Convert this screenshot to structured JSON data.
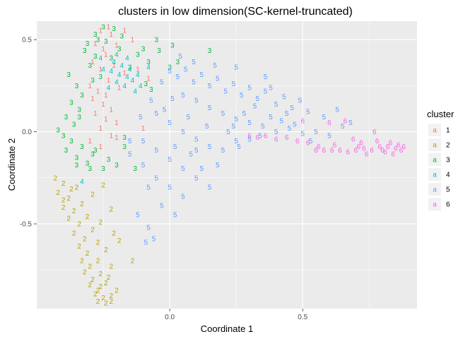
{
  "chart_data": {
    "type": "scatter",
    "title": "clusters in low dimension(SC-kernel-truncated)",
    "xlabel": "Coordinate 1",
    "ylabel": "Coordinate 2",
    "xlim": [
      -0.5,
      0.93
    ],
    "ylim": [
      -0.96,
      0.6
    ],
    "x_ticks": [
      "0.0",
      "0.5"
    ],
    "y_ticks": [
      "0.5",
      "0.0",
      "-0.5"
    ],
    "grid": true,
    "legend_title": "cluster",
    "legend_position": "right",
    "series": [
      {
        "name": "1",
        "color": "#F8766D",
        "points": [
          [
            -0.26,
            0.55
          ],
          [
            -0.22,
            0.53
          ],
          [
            -0.17,
            0.55
          ],
          [
            -0.28,
            0.48
          ],
          [
            -0.25,
            0.45
          ],
          [
            -0.2,
            0.47
          ],
          [
            -0.24,
            0.42
          ],
          [
            -0.29,
            0.38
          ],
          [
            -0.26,
            0.34
          ],
          [
            -0.21,
            0.36
          ],
          [
            -0.17,
            0.32
          ],
          [
            -0.12,
            0.34
          ],
          [
            -0.08,
            0.29
          ],
          [
            -0.3,
            0.25
          ],
          [
            -0.27,
            0.22
          ],
          [
            -0.24,
            0.2
          ],
          [
            -0.29,
            0.18
          ],
          [
            -0.25,
            0.15
          ],
          [
            -0.22,
            0.12
          ],
          [
            -0.28,
            0.1
          ],
          [
            -0.24,
            0.07
          ],
          [
            -0.2,
            0.05
          ],
          [
            -0.26,
            0.02
          ],
          [
            -0.22,
            -0.02
          ],
          [
            -0.3,
            -0.05
          ],
          [
            -0.26,
            -0.08
          ],
          [
            -0.2,
            -0.03
          ],
          [
            -0.1,
            0.02
          ],
          [
            -0.23,
            0.28
          ],
          [
            -0.19,
            0.24
          ],
          [
            -0.23,
            0.57
          ],
          [
            -0.14,
            0.5
          ]
        ]
      },
      {
        "name": "2",
        "color": "#B79F00",
        "points": [
          [
            -0.43,
            -0.25
          ],
          [
            -0.4,
            -0.28
          ],
          [
            -0.37,
            -0.31
          ],
          [
            -0.42,
            -0.33
          ],
          [
            -0.38,
            -0.36
          ],
          [
            -0.35,
            -0.3
          ],
          [
            -0.4,
            -0.41
          ],
          [
            -0.36,
            -0.43
          ],
          [
            -0.33,
            -0.39
          ],
          [
            -0.38,
            -0.47
          ],
          [
            -0.34,
            -0.5
          ],
          [
            -0.31,
            -0.46
          ],
          [
            -0.29,
            -0.34
          ],
          [
            -0.25,
            -0.29
          ],
          [
            -0.22,
            -0.42
          ],
          [
            -0.36,
            -0.55
          ],
          [
            -0.32,
            -0.58
          ],
          [
            -0.29,
            -0.53
          ],
          [
            -0.26,
            -0.49
          ],
          [
            -0.34,
            -0.62
          ],
          [
            -0.31,
            -0.66
          ],
          [
            -0.27,
            -0.6
          ],
          [
            -0.24,
            -0.64
          ],
          [
            -0.33,
            -0.7
          ],
          [
            -0.3,
            -0.73
          ],
          [
            -0.27,
            -0.7
          ],
          [
            -0.32,
            -0.76
          ],
          [
            -0.29,
            -0.8
          ],
          [
            -0.26,
            -0.77
          ],
          [
            -0.3,
            -0.83
          ],
          [
            -0.27,
            -0.86
          ],
          [
            -0.24,
            -0.82
          ],
          [
            -0.28,
            -0.88
          ],
          [
            -0.25,
            -0.9
          ],
          [
            -0.22,
            -0.89
          ],
          [
            -0.2,
            -0.86
          ],
          [
            -0.21,
            -0.55
          ],
          [
            -0.19,
            -0.59
          ],
          [
            -0.22,
            -0.73
          ],
          [
            -0.14,
            -0.7
          ],
          [
            -0.4,
            -0.37
          ],
          [
            -0.27,
            -0.92
          ],
          [
            -0.24,
            -0.93
          ],
          [
            -0.22,
            -0.92
          ],
          [
            -0.26,
            -0.84
          ],
          [
            -0.23,
            -0.79
          ]
        ]
      },
      {
        "name": "3",
        "color": "#00BA38",
        "points": [
          [
            -0.28,
            0.53
          ],
          [
            -0.25,
            0.57
          ],
          [
            -0.21,
            0.56
          ],
          [
            -0.18,
            0.52
          ],
          [
            -0.31,
            0.48
          ],
          [
            -0.27,
            0.5
          ],
          [
            -0.24,
            0.49
          ],
          [
            -0.19,
            0.45
          ],
          [
            -0.32,
            0.44
          ],
          [
            -0.28,
            0.41
          ],
          [
            -0.22,
            0.4
          ],
          [
            -0.1,
            0.45
          ],
          [
            -0.04,
            0.44
          ],
          [
            -0.05,
            0.5
          ],
          [
            0.01,
            0.47
          ],
          [
            0.03,
            0.38
          ],
          [
            -0.08,
            0.38
          ],
          [
            -0.12,
            0.42
          ],
          [
            -0.38,
            0.31
          ],
          [
            -0.35,
            0.25
          ],
          [
            -0.33,
            0.2
          ],
          [
            -0.37,
            0.16
          ],
          [
            -0.34,
            0.12
          ],
          [
            -0.39,
            0.08
          ],
          [
            -0.36,
            0.04
          ],
          [
            -0.4,
            -0.02
          ],
          [
            -0.37,
            -0.05
          ],
          [
            -0.33,
            -0.08
          ],
          [
            -0.39,
            -0.1
          ],
          [
            -0.35,
            -0.14
          ],
          [
            -0.31,
            -0.17
          ],
          [
            -0.29,
            -0.12
          ],
          [
            -0.35,
            -0.18
          ],
          [
            -0.3,
            -0.2
          ],
          [
            -0.25,
            -0.2
          ],
          [
            -0.23,
            -0.15
          ],
          [
            -0.17,
            -0.08
          ],
          [
            -0.13,
            -0.2
          ],
          [
            -0.07,
            0.23
          ],
          [
            -0.09,
            0.26
          ],
          [
            0.0,
            0.35
          ],
          [
            -0.15,
            0.35
          ],
          [
            -0.34,
            0.08
          ],
          [
            -0.42,
            0.01
          ],
          [
            -0.28,
            -0.1
          ],
          [
            -0.2,
            -0.18
          ],
          [
            -0.3,
            0.36
          ],
          [
            -0.26,
            0.3
          ],
          [
            -0.29,
            0.28
          ],
          [
            0.15,
            0.44
          ],
          [
            -0.17,
            -0.03
          ]
        ]
      },
      {
        "name": "4",
        "color": "#00BFC4",
        "points": [
          [
            -0.22,
            0.33
          ],
          [
            -0.19,
            0.31
          ],
          [
            -0.16,
            0.3
          ],
          [
            -0.2,
            0.27
          ],
          [
            -0.17,
            0.25
          ],
          [
            -0.14,
            0.28
          ],
          [
            -0.21,
            0.38
          ],
          [
            -0.18,
            0.36
          ],
          [
            -0.15,
            0.34
          ],
          [
            -0.25,
            0.34
          ],
          [
            -0.23,
            0.24
          ],
          [
            -0.13,
            0.22
          ],
          [
            -0.11,
            0.25
          ],
          [
            -0.26,
            0.4
          ],
          [
            -0.2,
            0.42
          ],
          [
            -0.16,
            0.4
          ],
          [
            -0.33,
            -0.27
          ],
          [
            -0.08,
            0.35
          ],
          [
            -0.12,
            0.31
          ]
        ]
      },
      {
        "name": "5",
        "color": "#619CFF",
        "points": [
          [
            0.0,
            0.33
          ],
          [
            0.03,
            0.3
          ],
          [
            0.06,
            0.34
          ],
          [
            0.09,
            0.27
          ],
          [
            0.12,
            0.31
          ],
          [
            0.15,
            0.25
          ],
          [
            0.18,
            0.29
          ],
          [
            0.21,
            0.22
          ],
          [
            0.24,
            0.26
          ],
          [
            0.27,
            0.2
          ],
          [
            0.3,
            0.24
          ],
          [
            0.33,
            0.18
          ],
          [
            0.36,
            0.22
          ],
          [
            0.4,
            0.15
          ],
          [
            0.43,
            0.19
          ],
          [
            0.46,
            0.13
          ],
          [
            0.49,
            0.17
          ],
          [
            0.52,
            0.11
          ],
          [
            0.05,
            0.2
          ],
          [
            0.1,
            0.17
          ],
          [
            0.15,
            0.13
          ],
          [
            0.2,
            0.1
          ],
          [
            0.25,
            0.07
          ],
          [
            0.3,
            0.05
          ],
          [
            0.35,
            0.03
          ],
          [
            0.4,
            0.0
          ],
          [
            0.45,
            0.02
          ],
          [
            0.5,
            -0.01
          ],
          [
            0.55,
            0.0
          ],
          [
            0.6,
            -0.02
          ],
          [
            0.65,
            0.03
          ],
          [
            -0.05,
            0.1
          ],
          [
            0.0,
            0.05
          ],
          [
            0.05,
            0.0
          ],
          [
            0.1,
            -0.04
          ],
          [
            0.15,
            -0.08
          ],
          [
            0.2,
            -0.1
          ],
          [
            0.25,
            -0.05
          ],
          [
            -0.1,
            -0.05
          ],
          [
            -0.05,
            -0.1
          ],
          [
            0.0,
            -0.15
          ],
          [
            0.05,
            -0.2
          ],
          [
            0.1,
            -0.25
          ],
          [
            0.15,
            -0.3
          ],
          [
            -0.15,
            -0.12
          ],
          [
            -0.1,
            -0.18
          ],
          [
            -0.05,
            -0.25
          ],
          [
            0.0,
            -0.3
          ],
          [
            0.05,
            -0.35
          ],
          [
            -0.08,
            -0.3
          ],
          [
            -0.03,
            -0.4
          ],
          [
            -0.12,
            -0.45
          ],
          [
            -0.08,
            -0.52
          ],
          [
            -0.06,
            -0.58
          ],
          [
            -0.09,
            -0.6
          ],
          [
            0.1,
            -0.1
          ],
          [
            0.14,
            0.03
          ],
          [
            0.28,
            0.1
          ],
          [
            0.32,
            0.14
          ],
          [
            0.38,
            0.08
          ],
          [
            0.42,
            0.06
          ],
          [
            0.47,
            0.04
          ],
          [
            0.22,
            0.0
          ],
          [
            0.26,
            -0.08
          ],
          [
            0.34,
            -0.02
          ],
          [
            0.18,
            -0.18
          ],
          [
            0.08,
            -0.12
          ],
          [
            0.12,
            -0.2
          ],
          [
            0.02,
            -0.08
          ],
          [
            0.07,
            0.08
          ],
          [
            0.38,
            0.24
          ],
          [
            0.44,
            0.1
          ],
          [
            0.58,
            0.08
          ],
          [
            0.63,
            0.12
          ],
          [
            0.68,
            0.05
          ],
          [
            0.36,
            0.3
          ],
          [
            0.25,
            0.35
          ],
          [
            0.17,
            0.36
          ],
          [
            0.09,
            0.38
          ],
          [
            0.04,
            0.41
          ],
          [
            -0.03,
            0.27
          ],
          [
            -0.07,
            0.17
          ],
          [
            -0.02,
            0.12
          ],
          [
            0.53,
            -0.05
          ],
          [
            0.3,
            -0.04
          ],
          [
            0.24,
            0.03
          ],
          [
            0.02,
            -0.45
          ],
          [
            -0.11,
            0.08
          ],
          [
            -0.15,
            -0.05
          ],
          [
            0.01,
            0.18
          ]
        ]
      },
      {
        "name": "6",
        "color": "#F564E3",
        "points": [
          [
            0.3,
            -0.02
          ],
          [
            0.33,
            -0.03
          ],
          [
            0.36,
            -0.02
          ],
          [
            0.4,
            -0.04
          ],
          [
            0.44,
            -0.03
          ],
          [
            0.48,
            -0.05
          ],
          [
            0.52,
            -0.06
          ],
          [
            0.55,
            -0.1
          ],
          [
            0.58,
            -0.1
          ],
          [
            0.61,
            -0.1
          ],
          [
            0.64,
            -0.1
          ],
          [
            0.67,
            -0.11
          ],
          [
            0.7,
            -0.1
          ],
          [
            0.73,
            -0.09
          ],
          [
            0.76,
            -0.1
          ],
          [
            0.79,
            -0.08
          ],
          [
            0.82,
            -0.08
          ],
          [
            0.85,
            -0.09
          ],
          [
            0.88,
            -0.08
          ],
          [
            0.81,
            -0.11
          ],
          [
            0.84,
            -0.12
          ],
          [
            0.78,
            -0.05
          ],
          [
            0.72,
            -0.06
          ],
          [
            0.69,
            -0.04
          ],
          [
            0.74,
            -0.12
          ],
          [
            0.87,
            -0.1
          ],
          [
            0.62,
            -0.07
          ],
          [
            0.56,
            -0.08
          ],
          [
            0.5,
            0.06
          ],
          [
            0.6,
            0.05
          ],
          [
            0.77,
            0.0
          ],
          [
            0.83,
            -0.06
          ],
          [
            0.66,
            0.06
          ],
          [
            0.71,
            -0.08
          ],
          [
            0.8,
            -0.1
          ],
          [
            0.86,
            -0.07
          ]
        ]
      }
    ]
  }
}
